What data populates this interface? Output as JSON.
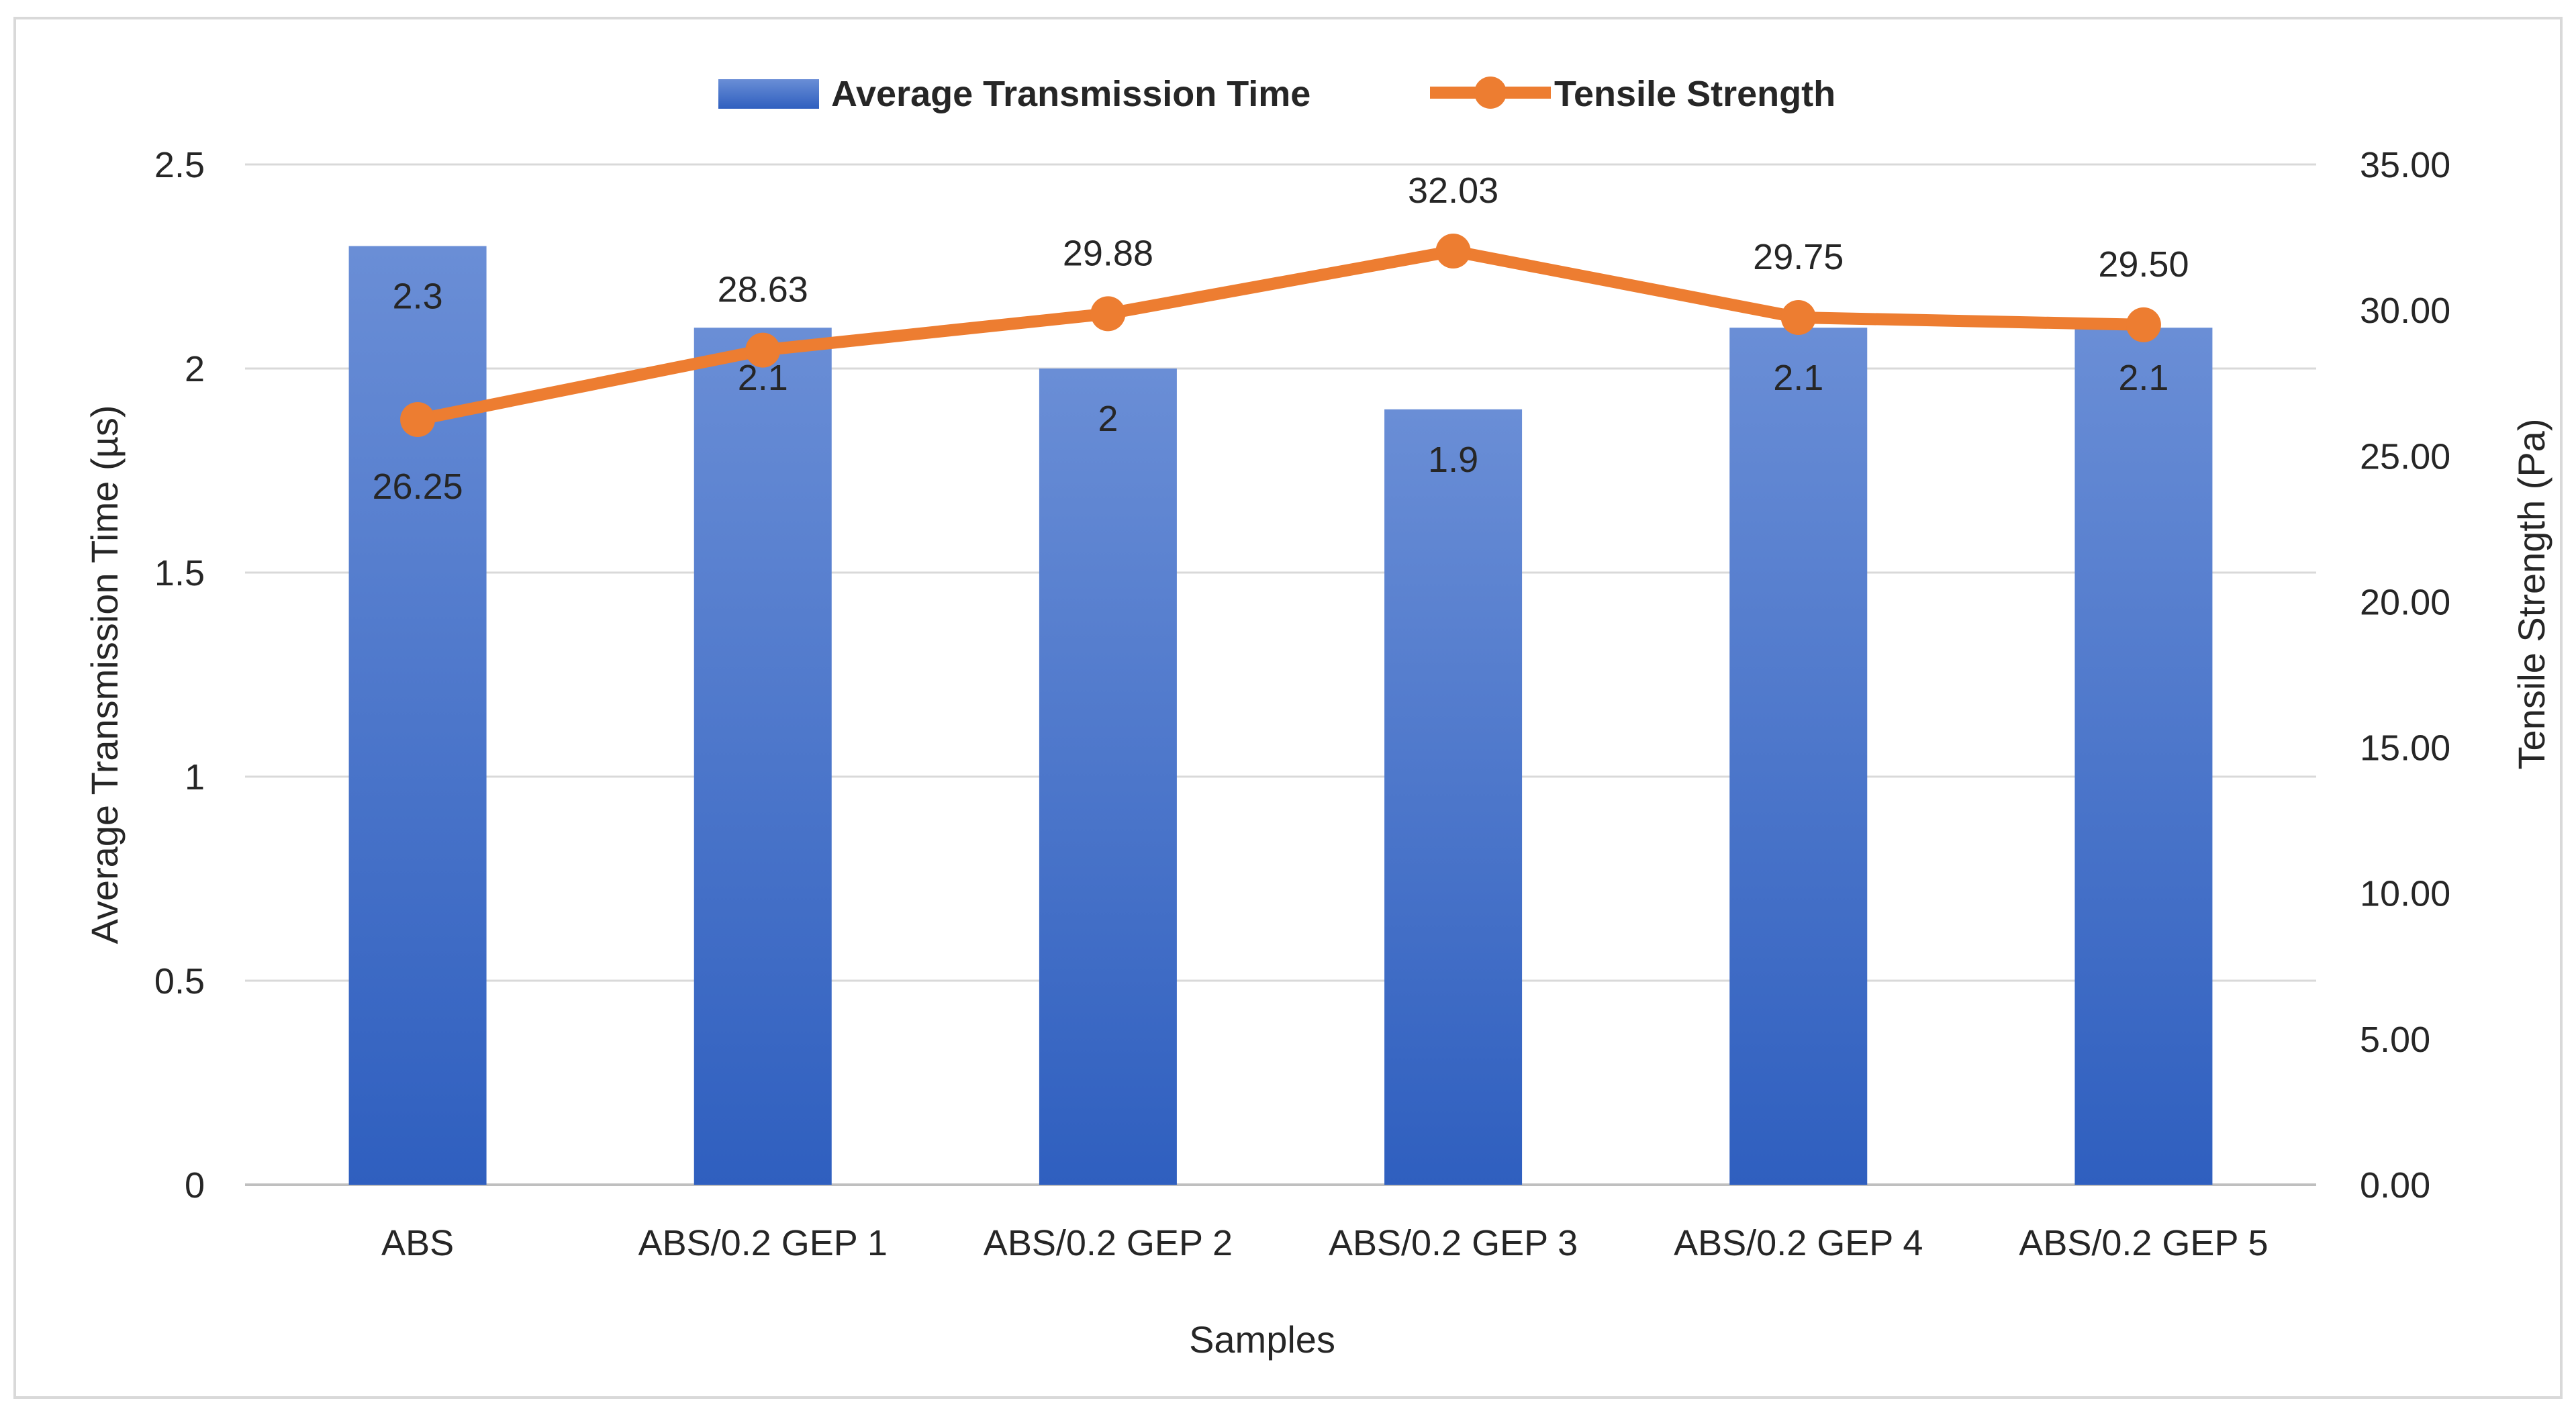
{
  "chart_data": {
    "type": "bar",
    "title": "",
    "xlabel": "Samples",
    "ylabel": "Average Transmission Time (µs)",
    "y2label": "Tensile Strength (Pa)",
    "categories": [
      "ABS",
      "ABS/0.2 GEP 1",
      "ABS/0.2 GEP 2",
      "ABS/0.2 GEP 3",
      "ABS/0.2 GEP 4",
      "ABS/0.2 GEP 5"
    ],
    "ylim": [
      0,
      2.5
    ],
    "y2lim": [
      0,
      35
    ],
    "y_ticks": [
      "0",
      "0.5",
      "1",
      "1.5",
      "2",
      "2.5"
    ],
    "y2_ticks": [
      "0.00",
      "5.00",
      "10.00",
      "15.00",
      "20.00",
      "25.00",
      "30.00",
      "35.00"
    ],
    "grid": true,
    "legend_position": "top-center",
    "series": [
      {
        "name": "Average Transmission Time",
        "type": "bar",
        "axis": "left",
        "values": [
          2.3,
          2.1,
          2.0,
          1.9,
          2.1,
          2.1
        ],
        "labels": [
          "2.3",
          "2.1",
          "2",
          "1.9",
          "2.1",
          "2.1"
        ],
        "color": "#4472C4"
      },
      {
        "name": "Tensile Strength",
        "type": "line",
        "axis": "right",
        "values": [
          26.25,
          28.63,
          29.88,
          32.03,
          29.75,
          29.5
        ],
        "labels": [
          "26.25",
          "28.63",
          "29.88",
          "32.03",
          "29.75",
          "29.50"
        ],
        "color": "#ED7D31"
      }
    ]
  }
}
